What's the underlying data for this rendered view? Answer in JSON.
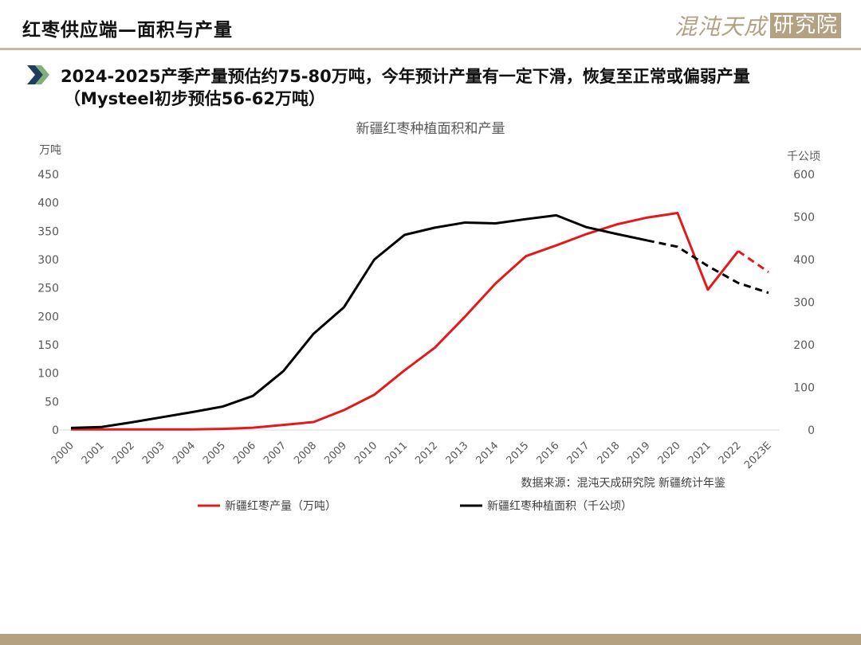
{
  "header": {
    "title": "红枣供应端—面积与产量",
    "brand_part1": "混沌天成",
    "brand_part2": "研究院"
  },
  "headline": {
    "line1": "2024-2025产季产量预估约75-80万吨，今年预计产量有一定下滑，恢复至正常或偏弱产量",
    "line2": "（Mysteel初步预估56-62万吨）"
  },
  "chart_data": {
    "type": "line",
    "title": "新疆红枣种植面积和产量",
    "categories": [
      "2000",
      "2001",
      "2002",
      "2003",
      "2004",
      "2005",
      "2006",
      "2007",
      "2008",
      "2009",
      "2010",
      "2011",
      "2012",
      "2013",
      "2014",
      "2015",
      "2016",
      "2017",
      "2018",
      "2019",
      "2020",
      "2021",
      "2022",
      "2023E"
    ],
    "y_left": {
      "unit": "万吨",
      "min": 0,
      "max": 450,
      "ticks": [
        0,
        50,
        100,
        150,
        200,
        250,
        300,
        350,
        400,
        450
      ]
    },
    "y_right": {
      "unit": "千公顷",
      "min": 0,
      "max": 600,
      "ticks": [
        0,
        100,
        200,
        300,
        400,
        500,
        600
      ]
    },
    "series": [
      {
        "name": "新疆红枣产量（万吨）",
        "axis": "left",
        "color": "#e31a1c",
        "values": [
          1,
          1,
          1,
          1,
          1,
          2,
          4,
          9,
          14,
          35,
          62,
          105,
          145,
          200,
          258,
          306,
          325,
          345,
          362,
          374,
          382,
          247,
          315,
          278
        ],
        "dashed_from_index": 22
      },
      {
        "name": "新疆红枣种植面积（千公顷）",
        "axis": "right",
        "color": "#000000",
        "values": [
          5,
          7,
          18,
          30,
          42,
          55,
          80,
          138,
          226,
          288,
          400,
          458,
          475,
          487,
          485,
          495,
          504,
          476,
          460,
          445,
          430,
          385,
          345,
          322
        ],
        "dashed_from_index": 19
      }
    ],
    "source_note": "数据来源：混沌天成研究院  新疆统计年鉴",
    "grid": false,
    "legend_position": "bottom"
  }
}
